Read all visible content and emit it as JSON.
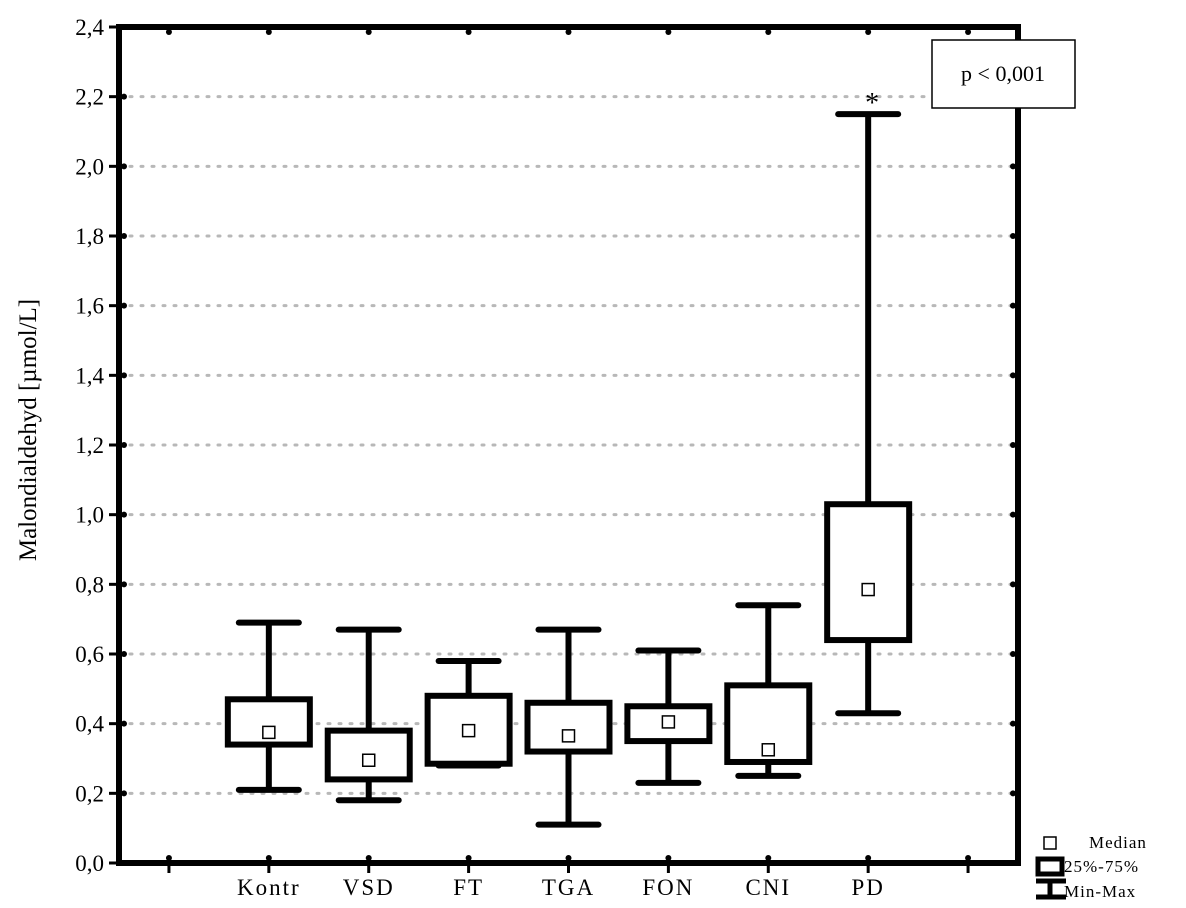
{
  "chart_data": {
    "type": "boxplot",
    "ylabel": "Malondialdehyd [µmol/L]",
    "ylim": [
      0,
      2.4
    ],
    "ytick_values": [
      0,
      0.2,
      0.4,
      0.6,
      0.8,
      1.0,
      1.2,
      1.4,
      1.6,
      1.8,
      2.0,
      2.2,
      2.4
    ],
    "ytick_labels": [
      "0,0",
      "0,2",
      "0,4",
      "0,6",
      "0,8",
      "1,0",
      "1,2",
      "1,4",
      "1,6",
      "1,8",
      "2,0",
      "2,2",
      "2,4"
    ],
    "grid": true,
    "categories": [
      "Kontr",
      "VSD",
      "FT",
      "TGA",
      "FON",
      "CNI",
      "PD"
    ],
    "boxes": [
      {
        "category": "Kontr",
        "min": 0.21,
        "q1": 0.34,
        "median": 0.375,
        "q3": 0.47,
        "max": 0.69
      },
      {
        "category": "VSD",
        "min": 0.18,
        "q1": 0.24,
        "median": 0.295,
        "q3": 0.38,
        "max": 0.67
      },
      {
        "category": "FT",
        "min": 0.28,
        "q1": 0.285,
        "median": 0.38,
        "q3": 0.48,
        "max": 0.58
      },
      {
        "category": "TGA",
        "min": 0.11,
        "q1": 0.32,
        "median": 0.365,
        "q3": 0.46,
        "max": 0.67
      },
      {
        "category": "FON",
        "min": 0.23,
        "q1": 0.35,
        "median": 0.405,
        "q3": 0.45,
        "max": 0.61
      },
      {
        "category": "CNI",
        "min": 0.25,
        "q1": 0.29,
        "median": 0.325,
        "q3": 0.51,
        "max": 0.74
      },
      {
        "category": "PD",
        "min": 0.43,
        "q1": 0.64,
        "median": 0.785,
        "q3": 1.03,
        "max": 2.15
      }
    ],
    "significance_marker": {
      "category": "PD",
      "text": "*"
    },
    "annotation": "p < 0,001",
    "legend": {
      "placement": "bottom-right",
      "entries": [
        "Median",
        "25%-75%",
        "Min-Max"
      ]
    }
  }
}
